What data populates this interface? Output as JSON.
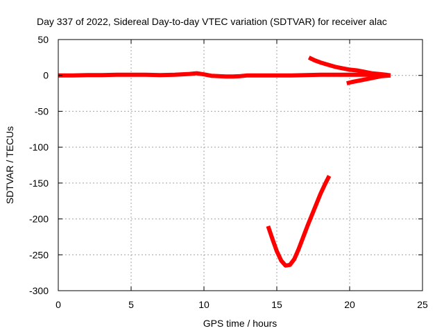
{
  "chart_data": {
    "type": "line",
    "title": "Day 337 of 2022, Sidereal Day-to-day VTEC variation (SDTVAR) for receiver alac",
    "xlabel": "GPS time / hours",
    "ylabel": "SDTVAR / TECUs",
    "xlim": [
      0,
      25
    ],
    "ylim": [
      -300,
      50
    ],
    "x_ticks": [
      "0",
      "5",
      "10",
      "15",
      "20",
      "25"
    ],
    "y_ticks": [
      "50",
      "0",
      "-50",
      "-100",
      "-150",
      "-200",
      "-250",
      "-300"
    ],
    "grid": true,
    "series_color": "#ff0000",
    "series": [
      {
        "x": [
          0,
          1,
          2,
          3,
          4,
          5,
          6,
          7,
          8,
          9,
          9.5,
          10,
          10.5,
          11,
          11.5,
          12,
          12.5,
          13,
          14,
          15,
          16,
          17,
          18,
          19,
          20,
          21,
          22,
          22.8
        ],
        "y": [
          0,
          0,
          0.5,
          0.5,
          1,
          1,
          1,
          0.5,
          1,
          2,
          3,
          1.5,
          -0.5,
          -1,
          -1.5,
          -1.5,
          -1,
          0,
          0,
          0,
          0,
          0.5,
          1,
          1,
          1,
          1,
          0.5,
          0
        ]
      },
      {
        "x": [
          17.2,
          17.6,
          18.0,
          18.5,
          19.0,
          19.5,
          20.0,
          20.5,
          21.0,
          21.5,
          22.0,
          22.5,
          22.8
        ],
        "y": [
          25,
          21,
          18,
          15,
          12,
          10,
          8,
          7,
          5,
          3,
          2,
          1,
          0
        ]
      },
      {
        "x": [
          19.8,
          20.2,
          20.7,
          21.2,
          21.7,
          22.2,
          22.8
        ],
        "y": [
          -11,
          -9,
          -7,
          -5,
          -3,
          -1,
          0
        ]
      },
      {
        "x": [
          14.4,
          14.7,
          15.0,
          15.3,
          15.6,
          15.9,
          16.2,
          16.5,
          16.8,
          17.1,
          17.4,
          17.7,
          18.0,
          18.3,
          18.6
        ],
        "y": [
          -210,
          -228,
          -245,
          -258,
          -265,
          -264,
          -256,
          -242,
          -226,
          -210,
          -195,
          -180,
          -165,
          -152,
          -140
        ]
      }
    ]
  }
}
